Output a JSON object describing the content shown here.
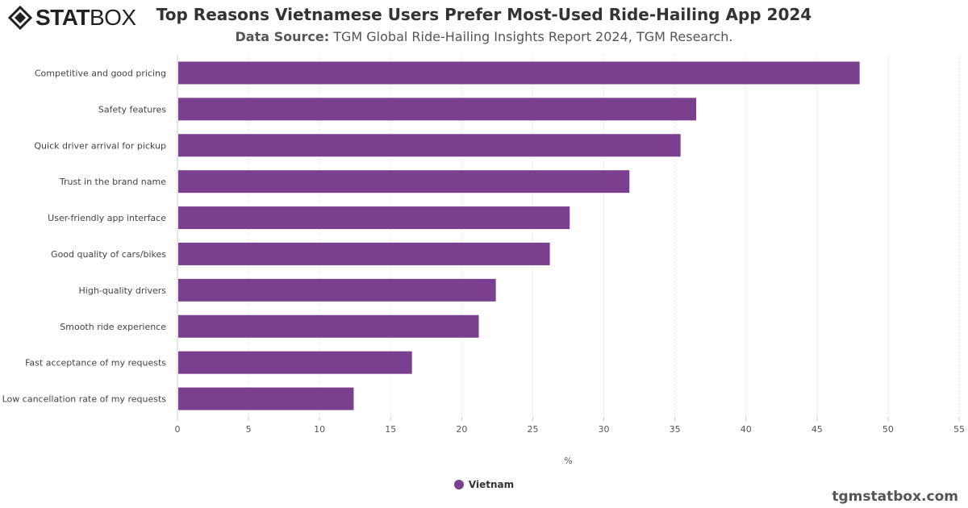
{
  "logo": {
    "text_bold": "STAT",
    "text_light": "BOX"
  },
  "chart_data": {
    "type": "bar",
    "orientation": "horizontal",
    "title": "Top Reasons Vietnamese Users Prefer Most-Used Ride-Hailing App 2024",
    "subtitle_label": "Data Source:",
    "subtitle": "TGM Global Ride-Hailing Insights Report 2024, TGM Research.",
    "categories": [
      "Competitive and good pricing",
      "Safety features",
      "Quick driver arrival for pickup",
      "Trust in the brand name",
      "User-friendly app interface",
      "Good quality of cars/bikes",
      "High-quality drivers",
      "Smooth ride experience",
      "Fast acceptance of my requests",
      "Low cancellation rate of my requests"
    ],
    "series": [
      {
        "name": "Vietnam",
        "values": [
          48.0,
          36.5,
          35.4,
          31.8,
          27.6,
          26.2,
          22.4,
          21.2,
          16.5,
          12.4
        ],
        "color": "#7b3f8f"
      }
    ],
    "xlabel": "%",
    "xlim": [
      0,
      55
    ],
    "xticks": [
      "0",
      "5",
      "10",
      "15",
      "20",
      "25",
      "30",
      "35",
      "40",
      "45",
      "50",
      "55"
    ],
    "grid": true,
    "legend_position": "bottom"
  },
  "watermark": "tgmstatbox.com"
}
